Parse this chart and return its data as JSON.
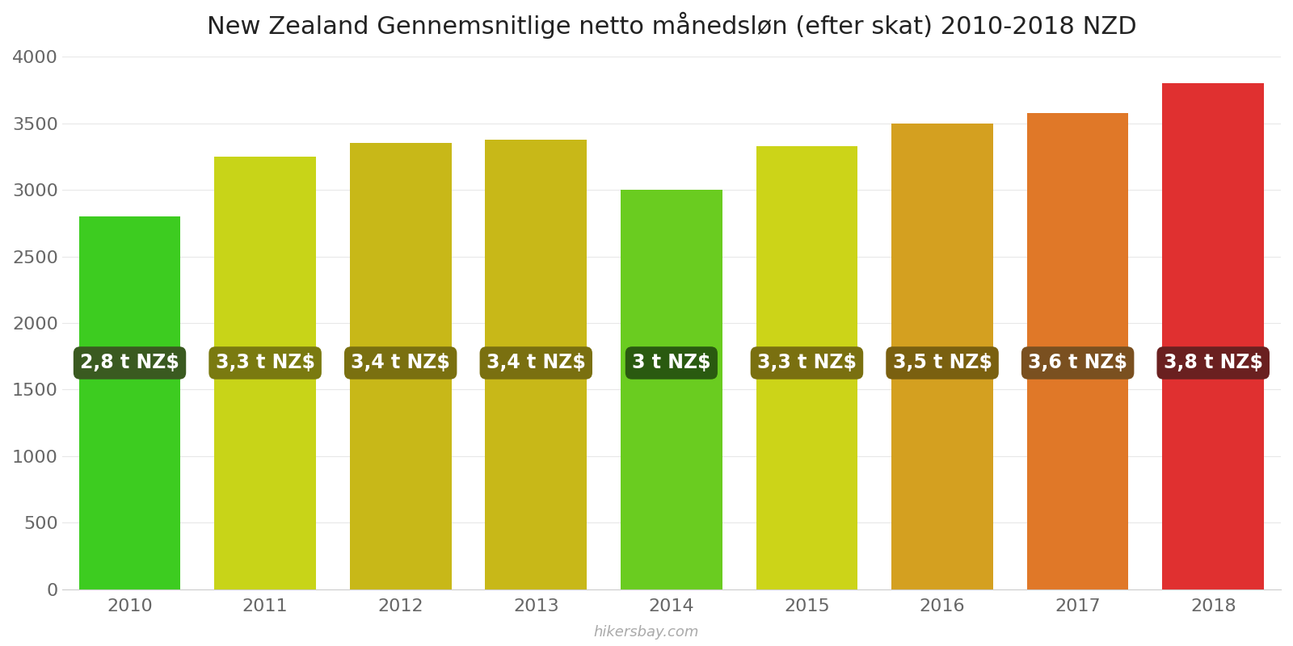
{
  "title": "New Zealand Gennemsnitlige netto månedsløn (efter skat) 2010-2018 NZD",
  "years": [
    2010,
    2011,
    2012,
    2013,
    2014,
    2015,
    2016,
    2017,
    2018
  ],
  "values": [
    2800,
    3250,
    3350,
    3375,
    3000,
    3325,
    3500,
    3575,
    3800
  ],
  "labels": [
    "2,8 t NZ$",
    "3,3 t NZ$",
    "3,4 t NZ$",
    "3,4 t NZ$",
    "3 t NZ$",
    "3,3 t NZ$",
    "3,5 t NZ$",
    "3,6 t NZ$",
    "3,8 t NZ$"
  ],
  "bar_colors": [
    "#3dcc20",
    "#c8d418",
    "#c8b818",
    "#c8b818",
    "#6acc20",
    "#ccd418",
    "#d4a020",
    "#e07828",
    "#e03030"
  ],
  "label_bg_colors": [
    "#3a5a20",
    "#7a7a10",
    "#7a7010",
    "#7a7010",
    "#2a5a10",
    "#7a7010",
    "#7a6010",
    "#7a5020",
    "#6a2020"
  ],
  "ylim": [
    0,
    4000
  ],
  "yticks": [
    0,
    500,
    1000,
    1500,
    2000,
    2500,
    3000,
    3500,
    4000
  ],
  "label_text_color": "#ffffff",
  "label_fontsize": 17,
  "title_fontsize": 22,
  "tick_fontsize": 16,
  "watermark": "hikersbay.com",
  "background_color": "#ffffff",
  "grid_color": "#e8e8e8",
  "bar_width": 0.75
}
